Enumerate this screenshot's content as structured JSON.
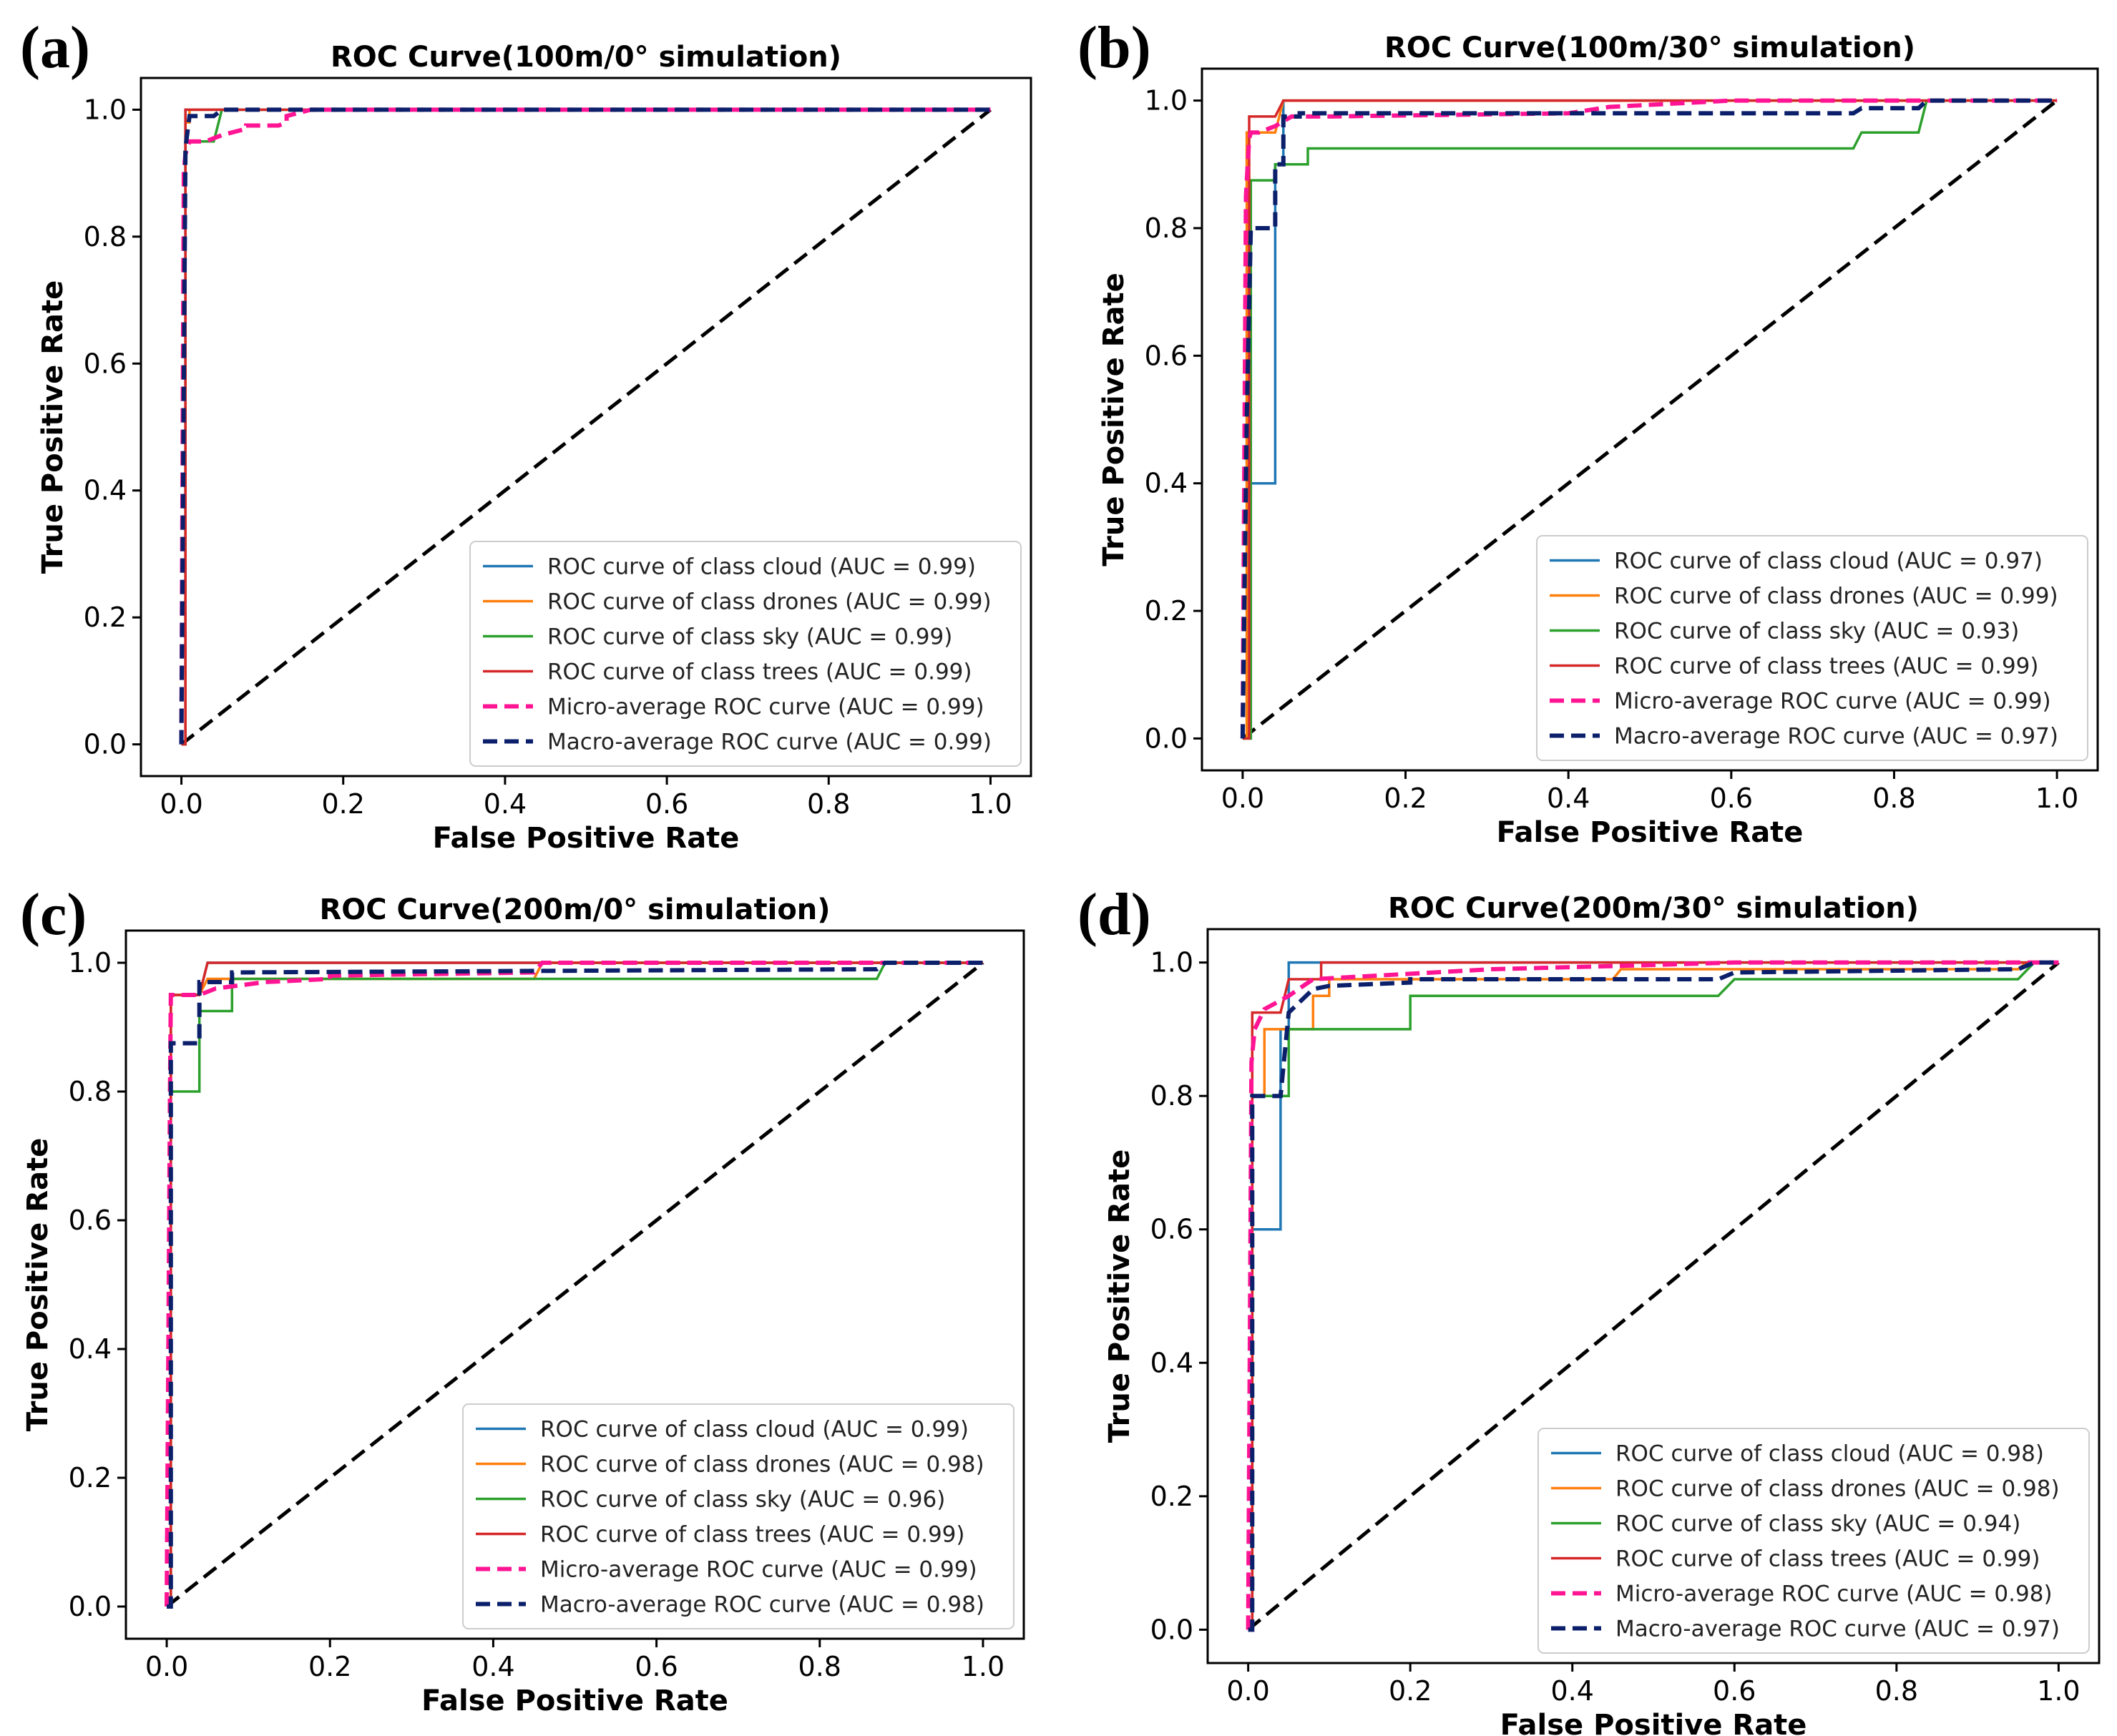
{
  "chart_data": [
    {
      "panel_label": "(a)",
      "type": "line",
      "title": "ROC Curve(100m/0° simulation)",
      "xlabel": "False Positive Rate",
      "ylabel": "True Positive Rate",
      "xlim": [
        -0.05,
        1.05
      ],
      "ylim": [
        -0.05,
        1.05
      ],
      "xticks": [
        "0.0",
        "0.2",
        "0.4",
        "0.6",
        "0.8",
        "1.0"
      ],
      "yticks": [
        "0.0",
        "0.2",
        "0.4",
        "0.6",
        "0.8",
        "1.0"
      ],
      "legend_position": "lower-right",
      "diagonal": {
        "x": [
          0,
          1
        ],
        "y": [
          0,
          1
        ],
        "color": "#000000"
      },
      "series": [
        {
          "name": "ROC curve of class cloud (AUC = 0.99)",
          "color": "#1f77b4",
          "style": "solid",
          "x": [
            0,
            0.005,
            0.005,
            1
          ],
          "y": [
            0,
            0,
            1,
            1
          ]
        },
        {
          "name": "ROC curve of class drones (AUC = 0.99)",
          "color": "#ff7f0e",
          "style": "solid",
          "x": [
            0,
            0.005,
            0.005,
            0.01,
            0.01,
            1
          ],
          "y": [
            0,
            0,
            0.98,
            0.98,
            1,
            1
          ]
        },
        {
          "name": "ROC curve of class sky (AUC = 0.99)",
          "color": "#2ca02c",
          "style": "solid",
          "x": [
            0,
            0.005,
            0.005,
            0.04,
            0.05,
            1
          ],
          "y": [
            0,
            0,
            0.95,
            0.95,
            1,
            1
          ]
        },
        {
          "name": "ROC curve of class trees (AUC = 0.99)",
          "color": "#d62728",
          "style": "solid",
          "x": [
            0,
            0.005,
            0.005,
            1
          ],
          "y": [
            0,
            0,
            1,
            1
          ]
        },
        {
          "name": "Micro-average ROC curve (AUC = 0.99)",
          "color": "#ff1493",
          "style": "dashed",
          "x": [
            0,
            0.003,
            0.005,
            0.01,
            0.03,
            0.05,
            0.08,
            0.08,
            0.12,
            0.13,
            0.13,
            0.16,
            1
          ],
          "y": [
            0,
            0.9,
            0.93,
            0.95,
            0.95,
            0.96,
            0.97,
            0.975,
            0.975,
            0.98,
            0.99,
            1,
            1
          ]
        },
        {
          "name": "Macro-average ROC curve (AUC = 0.99)",
          "color": "#0b1f6b",
          "style": "dashed",
          "x": [
            0,
            0.005,
            0.008,
            0.01,
            0.04,
            0.05,
            0.06,
            1
          ],
          "y": [
            0,
            0.94,
            0.97,
            0.99,
            0.99,
            1,
            1,
            1
          ]
        }
      ]
    },
    {
      "panel_label": "(b)",
      "type": "line",
      "title": "ROC Curve(100m/30° simulation)",
      "xlabel": "False Positive Rate",
      "ylabel": "True Positive Rate",
      "xlim": [
        -0.05,
        1.05
      ],
      "ylim": [
        -0.05,
        1.05
      ],
      "xticks": [
        "0.0",
        "0.2",
        "0.4",
        "0.6",
        "0.8",
        "1.0"
      ],
      "yticks": [
        "0.0",
        "0.2",
        "0.4",
        "0.6",
        "0.8",
        "1.0"
      ],
      "legend_position": "lower-right",
      "diagonal": {
        "x": [
          0,
          1
        ],
        "y": [
          0,
          1
        ],
        "color": "#000000"
      },
      "series": [
        {
          "name": "ROC curve of class cloud (AUC = 0.97)",
          "color": "#1f77b4",
          "style": "solid",
          "x": [
            0,
            0.01,
            0.01,
            0.04,
            0.04,
            0.05,
            0.05,
            1
          ],
          "y": [
            0,
            0,
            0.4,
            0.4,
            0.9,
            0.9,
            1,
            1
          ]
        },
        {
          "name": "ROC curve of class drones (AUC = 0.99)",
          "color": "#ff7f0e",
          "style": "solid",
          "x": [
            0,
            0.005,
            0.005,
            0.04,
            0.05,
            1
          ],
          "y": [
            0,
            0,
            0.95,
            0.95,
            1,
            1
          ]
        },
        {
          "name": "ROC curve of class sky (AUC = 0.93)",
          "color": "#2ca02c",
          "style": "solid",
          "x": [
            0,
            0.01,
            0.01,
            0.04,
            0.04,
            0.08,
            0.08,
            0.75,
            0.76,
            0.83,
            0.84,
            1
          ],
          "y": [
            0,
            0,
            0.875,
            0.875,
            0.9,
            0.9,
            0.925,
            0.925,
            0.95,
            0.95,
            1,
            1
          ]
        },
        {
          "name": "ROC curve of class trees (AUC = 0.99)",
          "color": "#d62728",
          "style": "solid",
          "x": [
            0,
            0.008,
            0.008,
            0.04,
            0.05,
            1
          ],
          "y": [
            0,
            0,
            0.975,
            0.975,
            1,
            1
          ]
        },
        {
          "name": "Micro-average ROC curve (AUC = 0.99)",
          "color": "#ff1493",
          "style": "dashed",
          "x": [
            0,
            0.004,
            0.008,
            0.01,
            0.02,
            0.04,
            0.06,
            0.1,
            0.4,
            0.45,
            0.6,
            1
          ],
          "y": [
            0,
            0.85,
            0.94,
            0.95,
            0.95,
            0.96,
            0.975,
            0.975,
            0.98,
            0.99,
            1,
            1
          ]
        },
        {
          "name": "Macro-average ROC curve (AUC = 0.97)",
          "color": "#0b1f6b",
          "style": "dashed",
          "x": [
            0,
            0.005,
            0.01,
            0.04,
            0.04,
            0.05,
            0.05,
            0.07,
            0.07,
            0.75,
            0.76,
            0.83,
            0.84,
            1
          ],
          "y": [
            0,
            0.5,
            0.8,
            0.8,
            0.9,
            0.9,
            0.975,
            0.975,
            0.98,
            0.98,
            0.988,
            0.988,
            1,
            1
          ]
        }
      ]
    },
    {
      "panel_label": "(c)",
      "type": "line",
      "title": "ROC Curve(200m/0° simulation)",
      "xlabel": "False Positive Rate",
      "ylabel": "True Positive Rate",
      "xlim": [
        -0.05,
        1.05
      ],
      "ylim": [
        -0.05,
        1.05
      ],
      "xticks": [
        "0.0",
        "0.2",
        "0.4",
        "0.6",
        "0.8",
        "1.0"
      ],
      "yticks": [
        "0.0",
        "0.2",
        "0.4",
        "0.6",
        "0.8",
        "1.0"
      ],
      "legend_position": "lower-right",
      "diagonal": {
        "x": [
          0,
          1
        ],
        "y": [
          0,
          1
        ],
        "color": "#000000"
      },
      "series": [
        {
          "name": "ROC curve of class cloud (AUC = 0.99)",
          "color": "#1f77b4",
          "style": "solid",
          "x": [
            0,
            0.005,
            0.005,
            0.04,
            0.05,
            1
          ],
          "y": [
            0,
            0,
            0.95,
            0.95,
            1,
            1
          ]
        },
        {
          "name": "ROC curve of class drones (AUC = 0.98)",
          "color": "#ff7f0e",
          "style": "solid",
          "x": [
            0,
            0.005,
            0.005,
            0.04,
            0.05,
            0.45,
            0.46,
            1
          ],
          "y": [
            0,
            0,
            0.95,
            0.95,
            0.975,
            0.975,
            1,
            1
          ]
        },
        {
          "name": "ROC curve of class sky (AUC = 0.96)",
          "color": "#2ca02c",
          "style": "solid",
          "x": [
            0,
            0.005,
            0.005,
            0.04,
            0.04,
            0.08,
            0.08,
            0.87,
            0.88,
            1
          ],
          "y": [
            0,
            0,
            0.8,
            0.8,
            0.925,
            0.925,
            0.975,
            0.975,
            1,
            1
          ]
        },
        {
          "name": "ROC curve of class trees (AUC = 0.99)",
          "color": "#d62728",
          "style": "solid",
          "x": [
            0,
            0.005,
            0.005,
            0.04,
            0.05,
            1
          ],
          "y": [
            0,
            0,
            0.95,
            0.95,
            1,
            1
          ]
        },
        {
          "name": "Micro-average ROC curve (AUC = 0.99)",
          "color": "#ff1493",
          "style": "dashed",
          "x": [
            0,
            0.004,
            0.005,
            0.04,
            0.06,
            0.12,
            0.2,
            0.2,
            0.45,
            0.46,
            1
          ],
          "y": [
            0,
            0.8,
            0.95,
            0.95,
            0.96,
            0.97,
            0.975,
            0.98,
            0.985,
            1,
            1
          ]
        },
        {
          "name": "Macro-average ROC curve (AUC = 0.98)",
          "color": "#0b1f6b",
          "style": "dashed",
          "x": [
            0,
            0.005,
            0.005,
            0.04,
            0.04,
            0.08,
            0.08,
            0.87,
            0.88,
            1
          ],
          "y": [
            0,
            0,
            0.875,
            0.875,
            0.97,
            0.97,
            0.985,
            0.99,
            1,
            1
          ]
        }
      ]
    },
    {
      "panel_label": "(d)",
      "type": "line",
      "title": "ROC Curve(200m/30° simulation)",
      "xlabel": "False Positive Rate",
      "ylabel": "True Positive Rate",
      "xlim": [
        -0.05,
        1.05
      ],
      "ylim": [
        -0.05,
        1.05
      ],
      "xticks": [
        "0.0",
        "0.2",
        "0.4",
        "0.6",
        "0.8",
        "1.0"
      ],
      "yticks": [
        "0.0",
        "0.2",
        "0.4",
        "0.6",
        "0.8",
        "1.0"
      ],
      "legend_position": "lower-right",
      "diagonal": {
        "x": [
          0,
          1
        ],
        "y": [
          0,
          1
        ],
        "color": "#000000"
      },
      "series": [
        {
          "name": "ROC curve of class cloud (AUC = 0.98)",
          "color": "#1f77b4",
          "style": "solid",
          "x": [
            0,
            0.005,
            0.005,
            0.04,
            0.04,
            0.05,
            0.05,
            1
          ],
          "y": [
            0,
            0,
            0.6,
            0.6,
            0.9,
            0.9,
            1,
            1
          ]
        },
        {
          "name": "ROC curve of class drones (AUC = 0.98)",
          "color": "#ff7f0e",
          "style": "solid",
          "x": [
            0,
            0.005,
            0.005,
            0.02,
            0.02,
            0.08,
            0.08,
            0.1,
            0.1,
            0.45,
            0.46,
            0.95,
            0.96,
            1
          ],
          "y": [
            0,
            0,
            0.8,
            0.8,
            0.9,
            0.9,
            0.95,
            0.95,
            0.975,
            0.975,
            0.99,
            0.99,
            1,
            1
          ]
        },
        {
          "name": "ROC curve of class sky (AUC = 0.94)",
          "color": "#2ca02c",
          "style": "solid",
          "x": [
            0,
            0.005,
            0.005,
            0.05,
            0.05,
            0.2,
            0.2,
            0.58,
            0.6,
            0.95,
            0.97,
            1
          ],
          "y": [
            0,
            0,
            0.8,
            0.8,
            0.9,
            0.9,
            0.95,
            0.95,
            0.975,
            0.975,
            1,
            1
          ]
        },
        {
          "name": "ROC curve of class trees (AUC = 0.99)",
          "color": "#d62728",
          "style": "solid",
          "x": [
            0,
            0.005,
            0.005,
            0.04,
            0.05,
            0.09,
            0.09,
            1
          ],
          "y": [
            0,
            0,
            0.925,
            0.925,
            0.975,
            0.975,
            1,
            1
          ]
        },
        {
          "name": "Micro-average ROC curve (AUC = 0.98)",
          "color": "#ff1493",
          "style": "dashed",
          "x": [
            0,
            0.004,
            0.008,
            0.02,
            0.05,
            0.08,
            0.3,
            0.46,
            0.6,
            1
          ],
          "y": [
            0,
            0.85,
            0.9,
            0.93,
            0.95,
            0.975,
            0.99,
            0.995,
            1,
            1
          ]
        },
        {
          "name": "Macro-average ROC curve (AUC = 0.97)",
          "color": "#0b1f6b",
          "style": "dashed",
          "x": [
            0,
            0.005,
            0.005,
            0.04,
            0.05,
            0.08,
            0.1,
            0.2,
            0.2,
            0.58,
            0.6,
            0.95,
            0.97,
            1
          ],
          "y": [
            0,
            0,
            0.8,
            0.8,
            0.925,
            0.96,
            0.965,
            0.97,
            0.975,
            0.975,
            0.985,
            0.99,
            1,
            1
          ]
        }
      ]
    }
  ]
}
